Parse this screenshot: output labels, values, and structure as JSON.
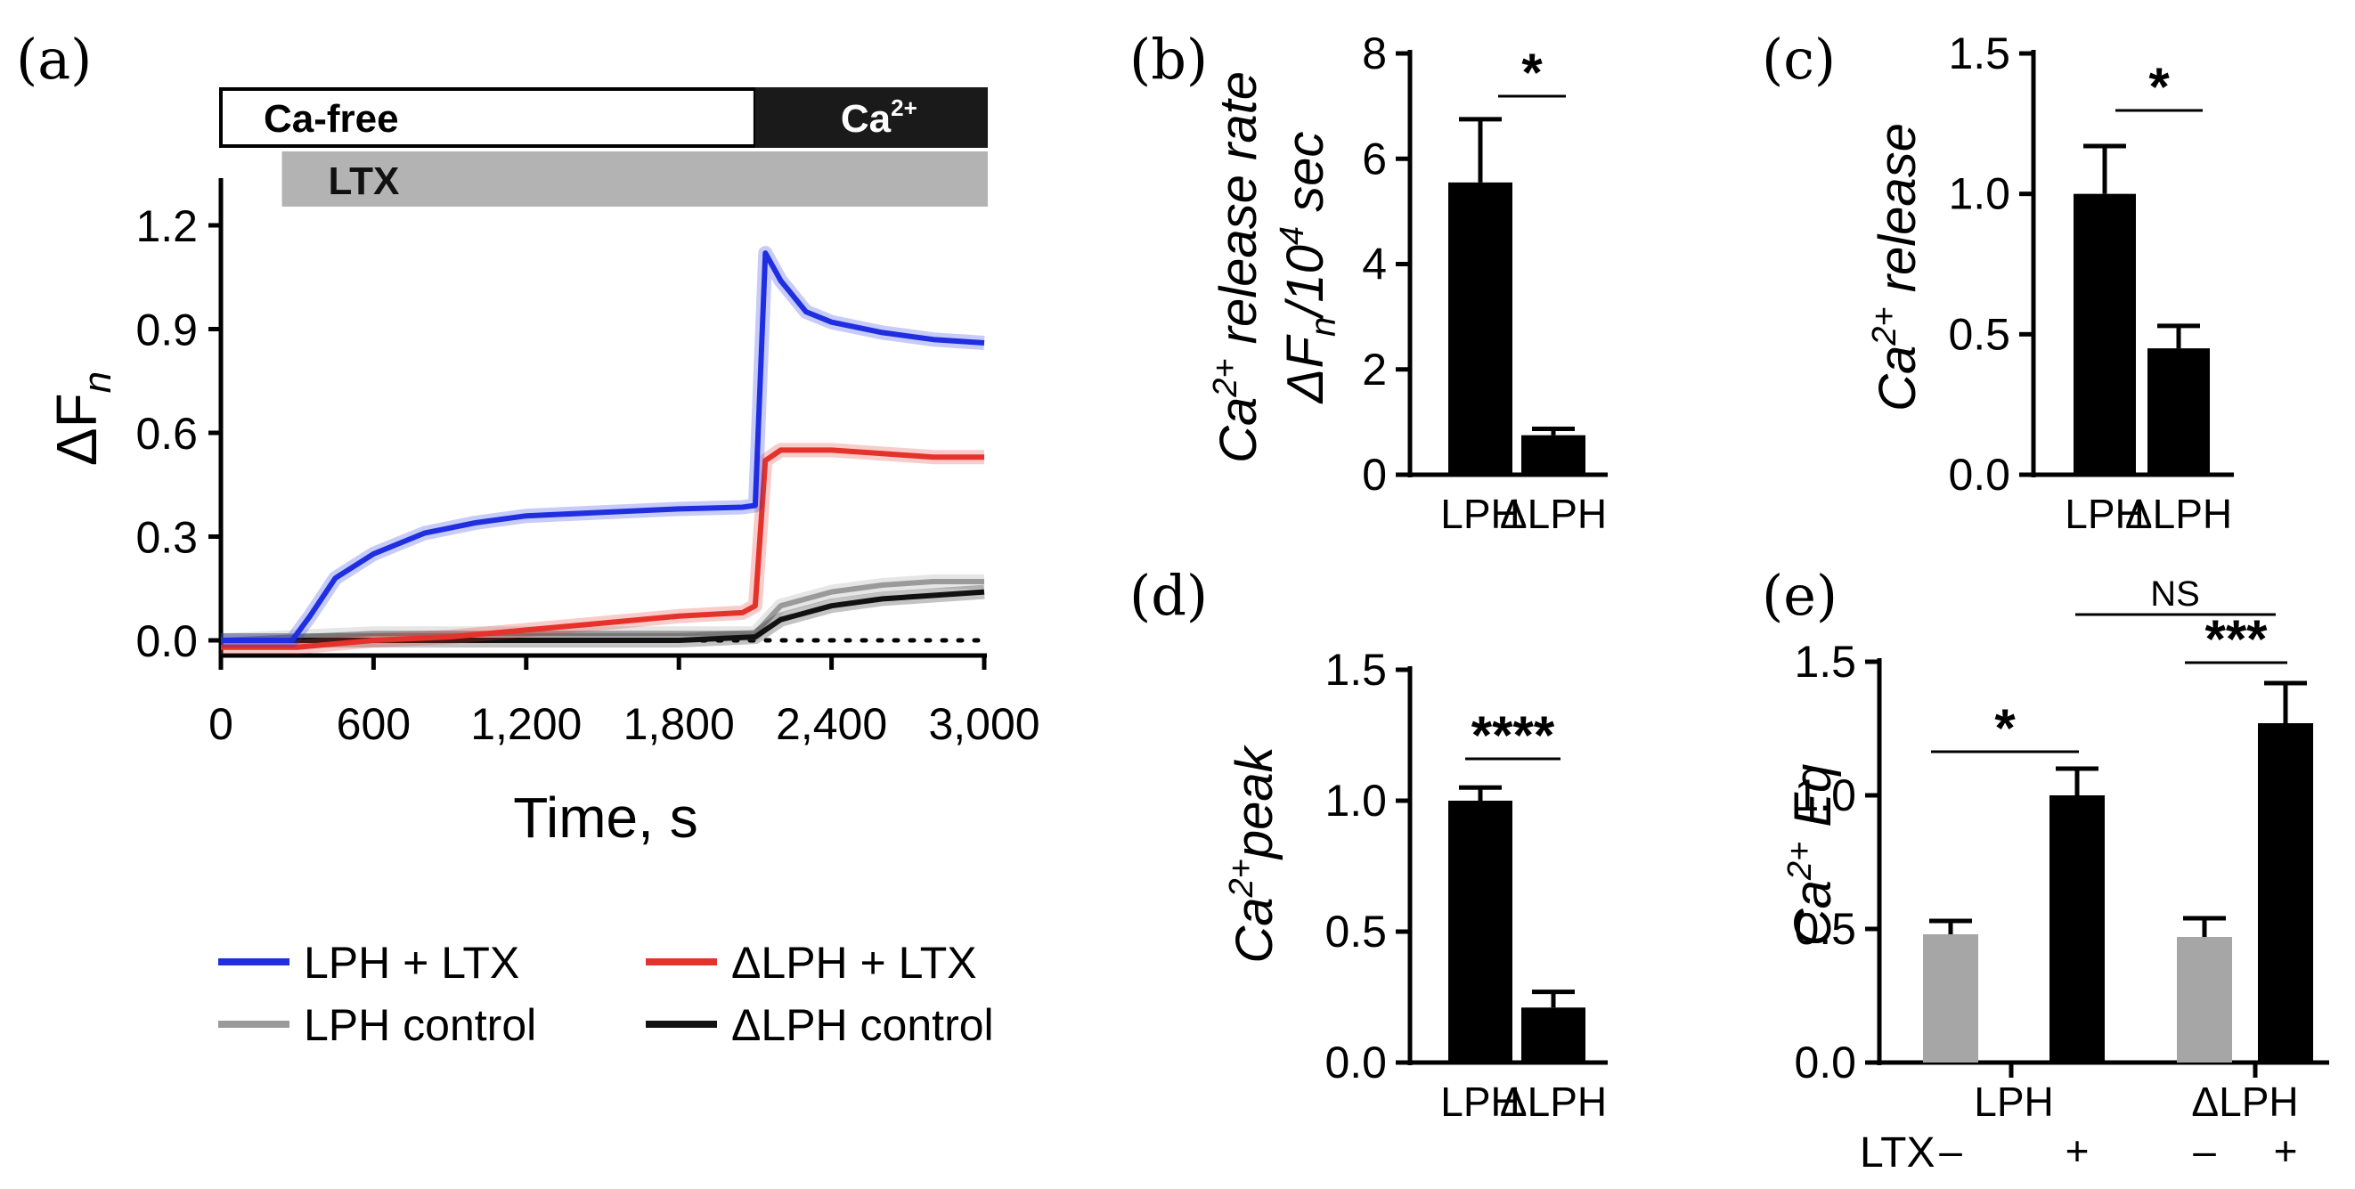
{
  "figure": {
    "panel_labels": [
      "(a)",
      "(b)",
      "(c)",
      "(d)",
      "(e)"
    ]
  },
  "chart_data": [
    {
      "panel": "(a)",
      "type": "line",
      "xlabel": "Time, s",
      "ylabel_main": "ΔF",
      "ylabel_sub": "n",
      "xlim": [
        0,
        3000
      ],
      "ylim": [
        -0.05,
        1.3
      ],
      "xticks": [
        0,
        600,
        1200,
        1800,
        2400,
        3000
      ],
      "xtick_labels": [
        "0",
        "600",
        "1,200",
        "1,800",
        "2,400",
        "3,000"
      ],
      "yticks": [
        0.0,
        0.3,
        0.6,
        0.9,
        1.2
      ],
      "ytick_labels": [
        "0.0",
        "0.3",
        "0.6",
        "0.9",
        "1.2"
      ],
      "bars": {
        "ca_free": {
          "label": "Ca-free",
          "start": 0,
          "end": 2100
        },
        "ca": {
          "label_main": "Ca",
          "label_sup": "2+",
          "start": 2100,
          "end": 3000
        },
        "ltx": {
          "label": "LTX",
          "start": 240,
          "end": 3000
        }
      },
      "baseline": 0.0,
      "series": [
        {
          "name": "LPH + LTX",
          "color": "#1f2ee0",
          "x": [
            0,
            280,
            350,
            450,
            600,
            800,
            1000,
            1200,
            1500,
            1800,
            2050,
            2100,
            2140,
            2200,
            2300,
            2400,
            2600,
            2800,
            3000
          ],
          "y": [
            0.0,
            0.0,
            0.07,
            0.18,
            0.25,
            0.31,
            0.34,
            0.36,
            0.37,
            0.38,
            0.385,
            0.39,
            1.12,
            1.04,
            0.95,
            0.92,
            0.89,
            0.87,
            0.86
          ]
        },
        {
          "name": "ΔLPH + LTX",
          "color": "#e5322a",
          "x": [
            0,
            300,
            600,
            900,
            1200,
            1500,
            1800,
            2050,
            2100,
            2140,
            2200,
            2400,
            2600,
            2800,
            3000
          ],
          "y": [
            -0.02,
            -0.02,
            0.0,
            0.01,
            0.03,
            0.05,
            0.07,
            0.08,
            0.1,
            0.52,
            0.55,
            0.55,
            0.54,
            0.53,
            0.53
          ]
        },
        {
          "name": "LPH control",
          "color": "#9a9a9a",
          "x": [
            0,
            300,
            600,
            900,
            1200,
            1500,
            1800,
            2100,
            2200,
            2400,
            2600,
            2800,
            3000
          ],
          "y": [
            0.0,
            0.01,
            0.02,
            0.02,
            0.02,
            0.02,
            0.02,
            0.02,
            0.1,
            0.14,
            0.16,
            0.17,
            0.17
          ]
        },
        {
          "name": "ΔLPH control",
          "color": "#111111",
          "x": [
            0,
            300,
            600,
            900,
            1200,
            1500,
            1800,
            2100,
            2200,
            2400,
            2600,
            2800,
            3000
          ],
          "y": [
            0.0,
            0.0,
            0.0,
            0.0,
            0.0,
            0.0,
            0.0,
            0.01,
            0.06,
            0.1,
            0.12,
            0.13,
            0.14
          ]
        }
      ],
      "legend": [
        "LPH + LTX",
        "ΔLPH + LTX",
        "LPH control",
        "ΔLPH control"
      ]
    },
    {
      "panel": "(b)",
      "type": "bar",
      "ylabel_line1": "Ca2+ release rate",
      "ylabel_line2": "ΔFn/10^4 sec",
      "categories": [
        "LPH",
        "ΔLPH"
      ],
      "values": [
        5.55,
        0.75
      ],
      "errors": [
        1.2,
        0.12
      ],
      "ylim": [
        0,
        8
      ],
      "yticks": [
        0,
        2,
        4,
        6,
        8
      ],
      "ytick_labels": [
        "0",
        "2",
        "4",
        "6",
        "8"
      ],
      "significance": "*"
    },
    {
      "panel": "(c)",
      "type": "bar",
      "ylabel": "Ca2+ release",
      "categories": [
        "LPH",
        "ΔLPH"
      ],
      "values": [
        1.0,
        0.45
      ],
      "errors": [
        0.17,
        0.08
      ],
      "ylim": [
        0,
        1.5
      ],
      "yticks": [
        0.0,
        0.5,
        1.0,
        1.5
      ],
      "ytick_labels": [
        "0.0",
        "0.5",
        "1.0",
        "1.5"
      ],
      "significance": "*"
    },
    {
      "panel": "(d)",
      "type": "bar",
      "ylabel": "Ca2+peak",
      "categories": [
        "LPH",
        "ΔLPH"
      ],
      "values": [
        1.0,
        0.21
      ],
      "errors": [
        0.05,
        0.06
      ],
      "ylim": [
        0,
        1.5
      ],
      "yticks": [
        0.0,
        0.5,
        1.0,
        1.5
      ],
      "ytick_labels": [
        "0.0",
        "0.5",
        "1.0",
        "1.5"
      ],
      "significance": "****"
    },
    {
      "panel": "(e)",
      "type": "bar",
      "ylabel": "Ca2+ Eq",
      "groups": [
        "LPH",
        "ΔLPH"
      ],
      "treatment_label": "LTX",
      "treatment_levels": [
        "–",
        "+"
      ],
      "series": [
        {
          "name": "LTX –",
          "color": "#a6a6a6",
          "values": [
            0.48,
            0.47
          ],
          "errors": [
            0.05,
            0.07
          ]
        },
        {
          "name": "LTX +",
          "color": "#000000",
          "values": [
            1.0,
            1.27
          ],
          "errors": [
            0.1,
            0.15
          ]
        }
      ],
      "ylim": [
        0,
        1.5
      ],
      "yticks": [
        0.0,
        0.5,
        1.0,
        1.5
      ],
      "ytick_labels": [
        "0.0",
        "0.5",
        "1.0",
        "1.5"
      ],
      "significance": {
        "LPH": "*",
        "ΔLPH": "***",
        "between_plus": "NS"
      }
    }
  ]
}
